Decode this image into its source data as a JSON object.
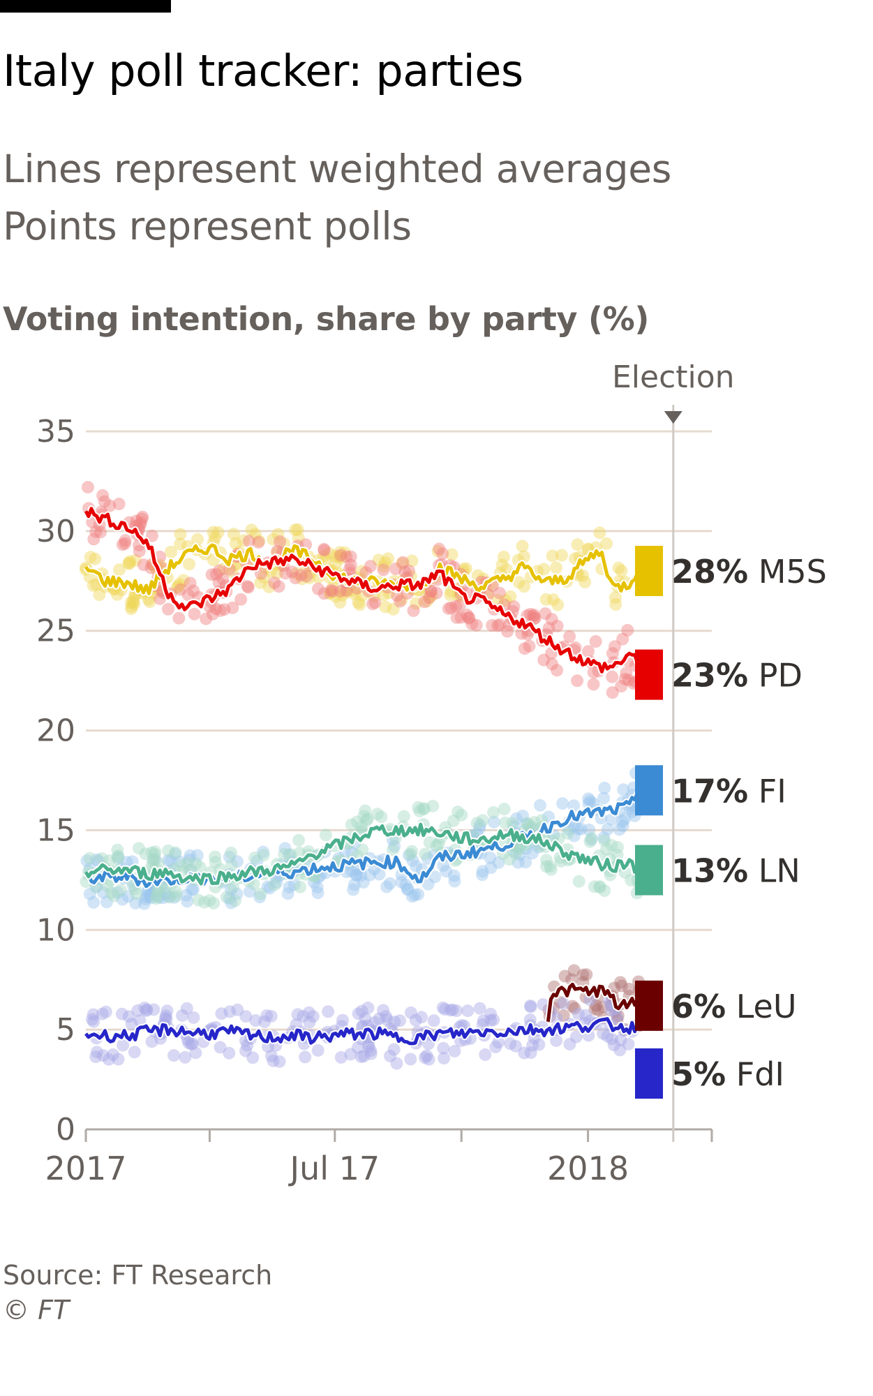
{
  "header": {
    "title": "Italy poll tracker: parties",
    "subtitle_line1": "Lines represent weighted averages",
    "subtitle_line2": "Points represent polls",
    "ylabel": "Voting intention, share by party (%)"
  },
  "footer": {
    "source": "Source: FT Research",
    "copyright_symbol": "©",
    "copyright_name": "FT"
  },
  "chart_data": {
    "type": "line",
    "title": "Italy poll tracker: parties",
    "ylabel": "Voting intention, share by party (%)",
    "ylim": [
      0,
      35
    ],
    "yticks": [
      0,
      5,
      10,
      15,
      20,
      25,
      30,
      35
    ],
    "xlim": [
      "2017-01-01",
      "2018-04-01"
    ],
    "xticks": [
      "2017-01-01",
      "2017-04-01",
      "2017-07-01",
      "2017-10-01",
      "2018-01-01",
      "2018-04-01"
    ],
    "xtick_labels": [
      "2017",
      "",
      "Jul 17",
      "",
      "2018",
      ""
    ],
    "grid": true,
    "annotation": {
      "label": "Election",
      "date": "2018-03-04"
    },
    "series": [
      {
        "name": "M5S",
        "value_label": "28%",
        "color": "#e6c100",
        "dot_color": "#f0d85a",
        "points": [
          [
            "2017-01-01",
            28.2
          ],
          [
            "2017-01-15",
            27.5
          ],
          [
            "2017-02-01",
            27.4
          ],
          [
            "2017-02-15",
            27.0
          ],
          [
            "2017-03-01",
            28.1
          ],
          [
            "2017-03-15",
            28.8
          ],
          [
            "2017-04-01",
            29.2
          ],
          [
            "2017-04-15",
            28.6
          ],
          [
            "2017-05-01",
            28.9
          ],
          [
            "2017-05-15",
            28.4
          ],
          [
            "2017-06-01",
            29.0
          ],
          [
            "2017-06-15",
            28.6
          ],
          [
            "2017-07-01",
            27.8
          ],
          [
            "2017-07-15",
            27.5
          ],
          [
            "2017-08-01",
            27.4
          ],
          [
            "2017-08-15",
            27.3
          ],
          [
            "2017-09-01",
            27.3
          ],
          [
            "2017-09-15",
            28.2
          ],
          [
            "2017-10-01",
            27.6
          ],
          [
            "2017-10-15",
            27.2
          ],
          [
            "2017-11-01",
            27.6
          ],
          [
            "2017-11-15",
            28.2
          ],
          [
            "2017-12-01",
            27.4
          ],
          [
            "2017-12-15",
            27.6
          ],
          [
            "2018-01-01",
            28.6
          ],
          [
            "2018-01-10",
            29.0
          ],
          [
            "2018-01-20",
            27.1
          ],
          [
            "2018-02-01",
            27.4
          ],
          [
            "2018-02-08",
            28.4
          ]
        ]
      },
      {
        "name": "PD",
        "value_label": "23%",
        "color": "#e60000",
        "dot_color": "#f08080",
        "points": [
          [
            "2017-01-01",
            31.0
          ],
          [
            "2017-01-15",
            30.6
          ],
          [
            "2017-02-01",
            30.2
          ],
          [
            "2017-02-15",
            29.4
          ],
          [
            "2017-03-01",
            27.0
          ],
          [
            "2017-03-15",
            26.1
          ],
          [
            "2017-04-01",
            26.6
          ],
          [
            "2017-04-15",
            27.1
          ],
          [
            "2017-05-01",
            28.3
          ],
          [
            "2017-05-15",
            28.4
          ],
          [
            "2017-06-01",
            28.6
          ],
          [
            "2017-06-15",
            28.2
          ],
          [
            "2017-07-01",
            27.8
          ],
          [
            "2017-07-15",
            27.4
          ],
          [
            "2017-08-01",
            27.1
          ],
          [
            "2017-08-15",
            27.3
          ],
          [
            "2017-09-01",
            27.3
          ],
          [
            "2017-09-15",
            27.9
          ],
          [
            "2017-10-01",
            26.7
          ],
          [
            "2017-10-15",
            26.5
          ],
          [
            "2017-11-01",
            25.8
          ],
          [
            "2017-11-15",
            25.4
          ],
          [
            "2017-12-01",
            24.6
          ],
          [
            "2017-12-15",
            24.0
          ],
          [
            "2018-01-01",
            23.4
          ],
          [
            "2018-01-10",
            23.2
          ],
          [
            "2018-01-20",
            23.2
          ],
          [
            "2018-02-01",
            23.9
          ],
          [
            "2018-02-08",
            23.0
          ]
        ]
      },
      {
        "name": "FI",
        "value_label": "17%",
        "color": "#3b8bd4",
        "dot_color": "#9cc6ee",
        "points": [
          [
            "2017-01-01",
            12.6
          ],
          [
            "2017-01-15",
            12.6
          ],
          [
            "2017-02-01",
            12.7
          ],
          [
            "2017-02-15",
            12.4
          ],
          [
            "2017-03-01",
            12.5
          ],
          [
            "2017-03-15",
            12.6
          ],
          [
            "2017-04-01",
            12.6
          ],
          [
            "2017-04-15",
            12.6
          ],
          [
            "2017-05-01",
            12.7
          ],
          [
            "2017-05-15",
            12.9
          ],
          [
            "2017-06-01",
            12.9
          ],
          [
            "2017-06-15",
            13.1
          ],
          [
            "2017-07-01",
            13.2
          ],
          [
            "2017-07-15",
            13.3
          ],
          [
            "2017-08-01",
            13.4
          ],
          [
            "2017-08-15",
            13.4
          ],
          [
            "2017-09-01",
            12.5
          ],
          [
            "2017-09-15",
            13.6
          ],
          [
            "2017-10-01",
            13.8
          ],
          [
            "2017-10-15",
            14.0
          ],
          [
            "2017-11-01",
            14.3
          ],
          [
            "2017-11-15",
            14.6
          ],
          [
            "2017-12-01",
            15.1
          ],
          [
            "2017-12-15",
            15.6
          ],
          [
            "2018-01-01",
            15.8
          ],
          [
            "2018-01-10",
            15.9
          ],
          [
            "2018-01-20",
            16.0
          ],
          [
            "2018-02-01",
            16.2
          ],
          [
            "2018-02-08",
            17.2
          ]
        ]
      },
      {
        "name": "LN",
        "value_label": "13%",
        "color": "#4aaf8c",
        "dot_color": "#a6d9c6",
        "points": [
          [
            "2017-01-01",
            12.9
          ],
          [
            "2017-01-15",
            13.0
          ],
          [
            "2017-02-01",
            13.0
          ],
          [
            "2017-02-15",
            12.8
          ],
          [
            "2017-03-01",
            12.9
          ],
          [
            "2017-03-15",
            12.6
          ],
          [
            "2017-04-01",
            12.6
          ],
          [
            "2017-04-15",
            12.7
          ],
          [
            "2017-05-01",
            12.9
          ],
          [
            "2017-05-15",
            13.0
          ],
          [
            "2017-06-01",
            13.2
          ],
          [
            "2017-06-15",
            13.8
          ],
          [
            "2017-07-01",
            14.2
          ],
          [
            "2017-07-15",
            14.6
          ],
          [
            "2017-08-01",
            15.0
          ],
          [
            "2017-08-15",
            15.0
          ],
          [
            "2017-09-01",
            15.0
          ],
          [
            "2017-09-15",
            14.9
          ],
          [
            "2017-10-01",
            14.6
          ],
          [
            "2017-10-15",
            14.5
          ],
          [
            "2017-11-01",
            14.8
          ],
          [
            "2017-11-15",
            14.7
          ],
          [
            "2017-12-01",
            14.4
          ],
          [
            "2017-12-15",
            13.9
          ],
          [
            "2018-01-01",
            13.5
          ],
          [
            "2018-01-10",
            13.3
          ],
          [
            "2018-01-20",
            13.2
          ],
          [
            "2018-02-01",
            13.4
          ],
          [
            "2018-02-08",
            12.9
          ]
        ]
      },
      {
        "name": "LeU",
        "value_label": "6%",
        "color": "#6b0000",
        "dot_color": "#b07070",
        "points": [
          [
            "2017-12-03",
            5.4
          ],
          [
            "2017-12-05",
            6.8
          ],
          [
            "2017-12-12",
            6.9
          ],
          [
            "2017-12-22",
            7.0
          ],
          [
            "2018-01-01",
            6.9
          ],
          [
            "2018-01-10",
            7.0
          ],
          [
            "2018-01-18",
            6.6
          ],
          [
            "2018-01-25",
            6.1
          ],
          [
            "2018-02-01",
            6.3
          ],
          [
            "2018-02-08",
            6.5
          ]
        ]
      },
      {
        "name": "FdI",
        "value_label": "5%",
        "color": "#2626c9",
        "dot_color": "#a9a9e6",
        "points": [
          [
            "2017-01-01",
            4.8
          ],
          [
            "2017-01-15",
            4.7
          ],
          [
            "2017-02-01",
            4.7
          ],
          [
            "2017-02-15",
            4.9
          ],
          [
            "2017-03-01",
            5.0
          ],
          [
            "2017-03-15",
            4.9
          ],
          [
            "2017-04-01",
            4.8
          ],
          [
            "2017-04-15",
            4.9
          ],
          [
            "2017-05-01",
            4.7
          ],
          [
            "2017-05-15",
            4.6
          ],
          [
            "2017-06-01",
            4.7
          ],
          [
            "2017-06-15",
            4.6
          ],
          [
            "2017-07-01",
            4.7
          ],
          [
            "2017-07-15",
            4.8
          ],
          [
            "2017-08-01",
            4.8
          ],
          [
            "2017-08-15",
            4.6
          ],
          [
            "2017-09-01",
            4.6
          ],
          [
            "2017-09-15",
            4.8
          ],
          [
            "2017-10-01",
            4.8
          ],
          [
            "2017-10-15",
            4.9
          ],
          [
            "2017-11-01",
            4.9
          ],
          [
            "2017-11-15",
            5.0
          ],
          [
            "2017-12-01",
            5.0
          ],
          [
            "2017-12-15",
            5.1
          ],
          [
            "2018-01-01",
            5.2
          ],
          [
            "2018-01-10",
            5.3
          ],
          [
            "2018-01-20",
            5.2
          ],
          [
            "2018-02-01",
            5.1
          ],
          [
            "2018-02-08",
            5.2
          ]
        ]
      }
    ]
  }
}
